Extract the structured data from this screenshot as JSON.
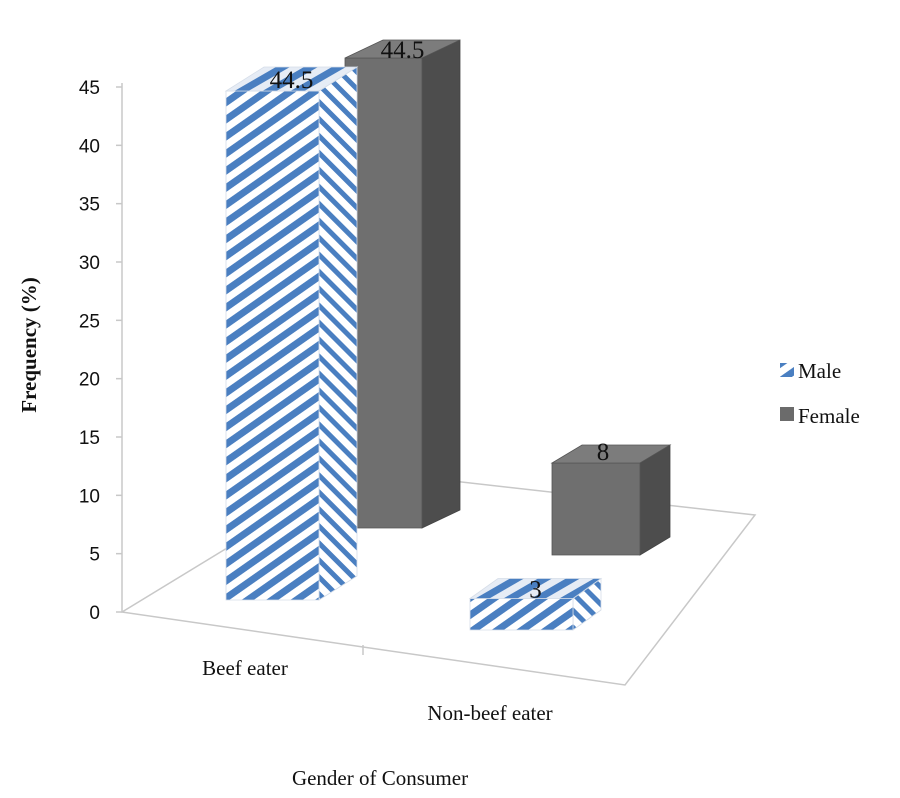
{
  "chart_data": {
    "type": "bar",
    "style": "3d-column",
    "categories": [
      "Beef eater",
      "Non-beef eater"
    ],
    "series": [
      {
        "name": "Male",
        "values": [
          44.5,
          3
        ],
        "color": "#4a7fc1",
        "pattern": "diagonal-stripes"
      },
      {
        "name": "Female",
        "values": [
          44.5,
          8
        ],
        "color": "#6b6b6b",
        "pattern": "solid"
      }
    ],
    "title": "",
    "xlabel": "Gender of Consumer",
    "ylabel": "Frequency (%)",
    "ylim": [
      0,
      45
    ],
    "yticks": [
      "0",
      "5",
      "10",
      "15",
      "20",
      "25",
      "30",
      "35",
      "40",
      "45"
    ],
    "data_labels": true,
    "grid": false,
    "legend_position": "right"
  }
}
